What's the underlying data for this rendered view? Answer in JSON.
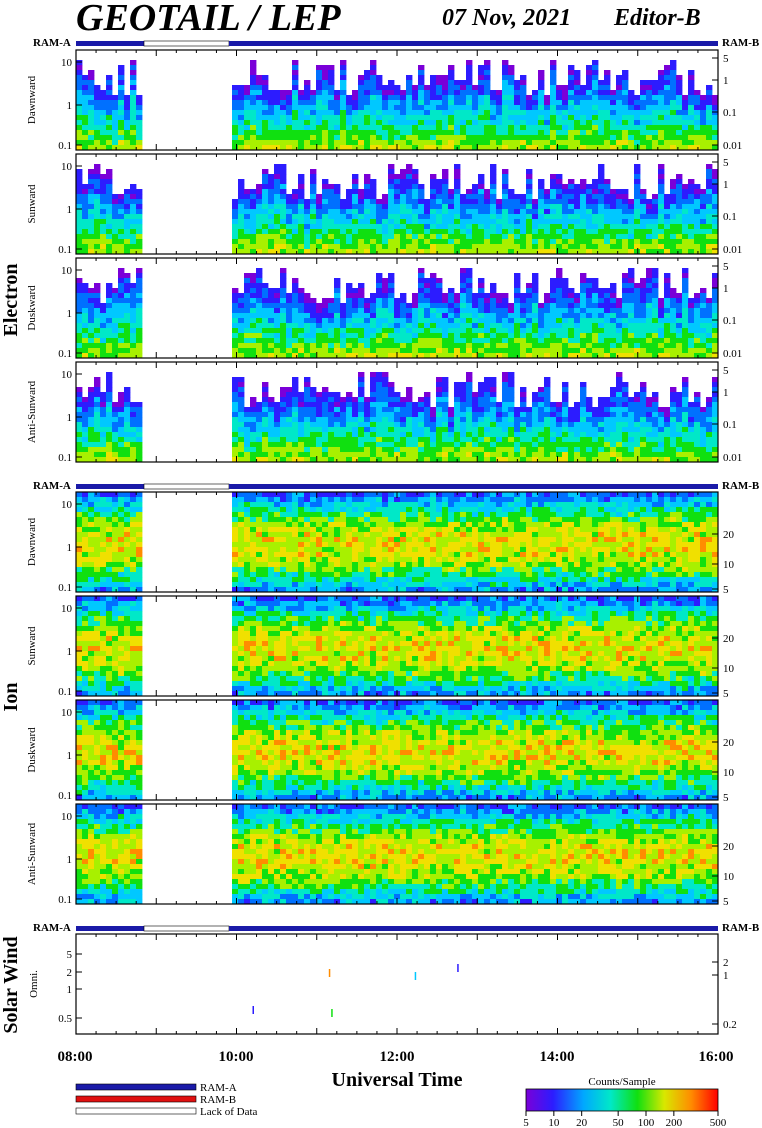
{
  "header": {
    "title": "GEOTAIL / LEP",
    "date": "07 Nov, 2021",
    "editor": "Editor-B"
  },
  "ram": {
    "left": "RAM-A",
    "right": "RAM-B"
  },
  "groups": {
    "electron": "Electron",
    "ion": "Ion",
    "solar_wind": "Solar Wind"
  },
  "legend": {
    "items": [
      {
        "label": "RAM-A",
        "color": "#1a1aa8"
      },
      {
        "label": "RAM-B",
        "color": "#e01010"
      },
      {
        "label": "Lack of Data",
        "color": "#ffffff"
      }
    ],
    "colorbar_title": "Counts/Sample",
    "colorbar_ticks": [
      "5",
      "10",
      "20",
      "50",
      "100",
      "200",
      "500"
    ]
  },
  "chart_data": [
    {
      "type": "heatmap",
      "group": "Electron",
      "ylabel": "Dawnward",
      "left_ticks": [
        "10",
        "1",
        "0.1"
      ],
      "right_ticks": [
        "5",
        "1",
        "0.1",
        "0.01"
      ],
      "data_gap": [
        "08:50",
        "09:55"
      ]
    },
    {
      "type": "heatmap",
      "group": "Electron",
      "ylabel": "Sunward",
      "left_ticks": [
        "10",
        "1",
        "0.1"
      ],
      "right_ticks": [
        "5",
        "1",
        "0.1",
        "0.01"
      ],
      "data_gap": [
        "08:50",
        "09:55"
      ]
    },
    {
      "type": "heatmap",
      "group": "Electron",
      "ylabel": "Duskward",
      "left_ticks": [
        "10",
        "1",
        "0.1"
      ],
      "right_ticks": [
        "5",
        "1",
        "0.1",
        "0.01"
      ],
      "data_gap": [
        "08:50",
        "09:55"
      ]
    },
    {
      "type": "heatmap",
      "group": "Electron",
      "ylabel": "Anti-Sunward",
      "left_ticks": [
        "10",
        "1",
        "0.1"
      ],
      "right_ticks": [
        "5",
        "1",
        "0.1",
        "0.01"
      ],
      "data_gap": [
        "08:50",
        "09:55"
      ]
    },
    {
      "type": "heatmap",
      "group": "Ion",
      "ylabel": "Dawnward",
      "left_ticks": [
        "10",
        "1",
        "0.1"
      ],
      "right_ticks": [
        "20",
        "10",
        "5"
      ],
      "data_gap": [
        "08:50",
        "09:55"
      ]
    },
    {
      "type": "heatmap",
      "group": "Ion",
      "ylabel": "Sunward",
      "left_ticks": [
        "10",
        "1",
        "0.1"
      ],
      "right_ticks": [
        "20",
        "10",
        "5"
      ],
      "data_gap": [
        "08:50",
        "09:55"
      ]
    },
    {
      "type": "heatmap",
      "group": "Ion",
      "ylabel": "Duskward",
      "left_ticks": [
        "10",
        "1",
        "0.1"
      ],
      "right_ticks": [
        "20",
        "10",
        "5"
      ],
      "data_gap": [
        "08:50",
        "09:55"
      ]
    },
    {
      "type": "heatmap",
      "group": "Ion",
      "ylabel": "Anti-Sunward",
      "left_ticks": [
        "10",
        "1",
        "0.1"
      ],
      "right_ticks": [
        "20",
        "10",
        "5"
      ],
      "data_gap": [
        "08:50",
        "09:55"
      ]
    },
    {
      "type": "heatmap",
      "group": "Solar Wind",
      "ylabel": "Omni.",
      "left_ticks": [
        "5",
        "2",
        "1",
        "0.5"
      ],
      "right_ticks": [
        "2",
        "1",
        "0.2"
      ],
      "data_gap": []
    }
  ],
  "xaxis": {
    "label": "Universal Time",
    "ticks": [
      "08:00",
      "10:00",
      "12:00",
      "14:00",
      "16:00"
    ],
    "start_hour": 8,
    "end_hour": 16
  }
}
